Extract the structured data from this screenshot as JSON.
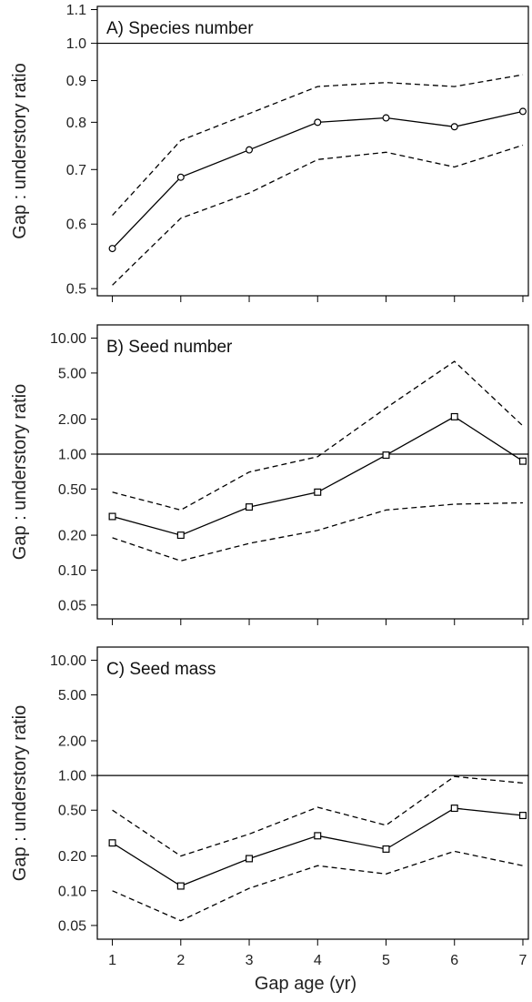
{
  "chart_data": [
    {
      "type": "line",
      "title": "A) Species number",
      "ylabel": "Gap : understory ratio",
      "xlabel": "",
      "scale": "log",
      "ylim": [
        0.49,
        1.11
      ],
      "yticks": [
        0.5,
        0.6,
        0.7,
        0.8,
        0.9,
        1.0,
        1.1
      ],
      "ytick_labels": [
        "0.5",
        "0.6",
        "0.7",
        "0.8",
        "0.9",
        "1.0",
        "1.1"
      ],
      "x": [
        1,
        2,
        3,
        4,
        5,
        6,
        7
      ],
      "reference_line": 1.0,
      "marker": "circle",
      "series": [
        {
          "role": "estimate",
          "style": "solid",
          "values": [
            0.56,
            0.685,
            0.74,
            0.8,
            0.81,
            0.79,
            0.825
          ]
        },
        {
          "role": "upper",
          "style": "dashed",
          "values": [
            0.615,
            0.76,
            0.82,
            0.885,
            0.895,
            0.885,
            0.915
          ]
        },
        {
          "role": "lower",
          "style": "dashed",
          "values": [
            0.505,
            0.61,
            0.655,
            0.72,
            0.735,
            0.705,
            0.75
          ]
        }
      ]
    },
    {
      "type": "line",
      "title": "B) Seed number",
      "ylabel": "Gap : understory ratio",
      "xlabel": "",
      "scale": "log",
      "ylim": [
        0.038,
        13
      ],
      "yticks": [
        0.05,
        0.1,
        0.2,
        0.5,
        1,
        2,
        5,
        10
      ],
      "ytick_labels": [
        "0.05",
        "0.10",
        "0.20",
        "0.50",
        "1.00",
        "2.00",
        "5.00",
        "10.00"
      ],
      "x": [
        1,
        2,
        3,
        4,
        5,
        6,
        7
      ],
      "reference_line": 1.0,
      "marker": "square",
      "series": [
        {
          "role": "estimate",
          "style": "solid",
          "values": [
            0.29,
            0.2,
            0.35,
            0.47,
            0.98,
            2.1,
            0.87
          ]
        },
        {
          "role": "upper",
          "style": "dashed",
          "values": [
            0.47,
            0.33,
            0.7,
            0.95,
            2.5,
            6.3,
            1.75
          ]
        },
        {
          "role": "lower",
          "style": "dashed",
          "values": [
            0.19,
            0.12,
            0.17,
            0.22,
            0.33,
            0.37,
            0.38
          ]
        }
      ]
    },
    {
      "type": "line",
      "title": "C) Seed mass",
      "ylabel": "Gap : understory ratio",
      "xlabel": "Gap age (yr)",
      "scale": "log",
      "ylim": [
        0.038,
        13
      ],
      "yticks": [
        0.05,
        0.1,
        0.2,
        0.5,
        1,
        2,
        5,
        10
      ],
      "ytick_labels": [
        "0.05",
        "0.10",
        "0.20",
        "0.50",
        "1.00",
        "2.00",
        "5.00",
        "10.00"
      ],
      "xticks": [
        1,
        2,
        3,
        4,
        5,
        6,
        7
      ],
      "x": [
        1,
        2,
        3,
        4,
        5,
        6,
        7
      ],
      "reference_line": 1.0,
      "marker": "square",
      "series": [
        {
          "role": "estimate",
          "style": "solid",
          "values": [
            0.26,
            0.11,
            0.19,
            0.3,
            0.23,
            0.52,
            0.45
          ]
        },
        {
          "role": "upper",
          "style": "dashed",
          "values": [
            0.5,
            0.2,
            0.31,
            0.53,
            0.37,
            0.98,
            0.86
          ]
        },
        {
          "role": "lower",
          "style": "dashed",
          "values": [
            0.1,
            0.055,
            0.105,
            0.165,
            0.14,
            0.22,
            0.165
          ]
        }
      ]
    }
  ]
}
